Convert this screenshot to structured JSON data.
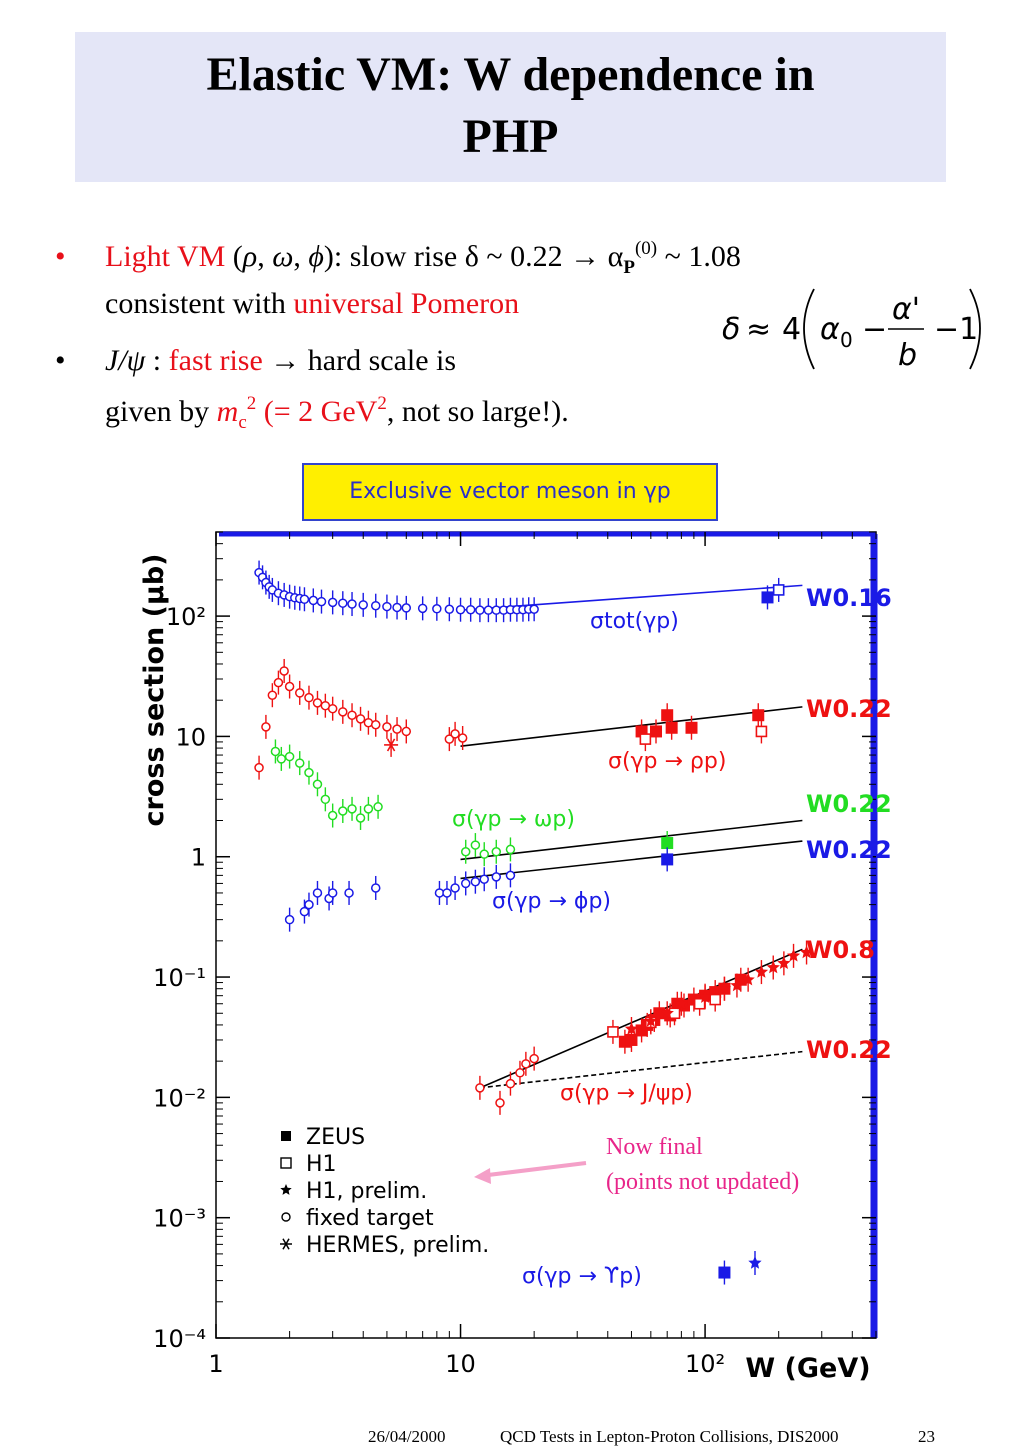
{
  "slide": {
    "title_line1": "Elastic VM: W dependence in",
    "title_line2": "PHP",
    "bullet1": {
      "part1_red": "Light VM",
      "part2": " (",
      "rho": "ρ",
      "sep1": ", ",
      "omega": "ω",
      "sep2": ", ",
      "phi": "ϕ",
      "part3": "): slow rise δ ~ 0.22 → α",
      "sub_p": "P",
      "sup0": "(0)",
      "part4": " ~ 1.08",
      "line2_text": "consistent with ",
      "line2_red": "universal Pomeron"
    },
    "bullet2": {
      "jpsi": "J/ψ",
      "colon": " : ",
      "red": "fast rise",
      "rest": " → hard scale is",
      "line2_a": "given by ",
      "m": "m",
      "c": "c",
      "sq": "2",
      "paren_red": " (= 2 GeV",
      "sq2": "2",
      "tail": ", not so large!)."
    },
    "formula": {
      "delta": "δ",
      "approx": "≈",
      "four": "4",
      "alpha0": "α",
      "zero": "0",
      "minus1": "−",
      "alphap": "α'",
      "b": "b",
      "minus2": "−1"
    },
    "chart_header": "Exclusive vector meson in γp",
    "note_line1": "Now final",
    "note_line2": "(points not updated)",
    "footer_date": "26/04/2000",
    "footer_title": "QCD Tests in Lepton-Proton Collisions, DIS2000",
    "footer_page": "23"
  },
  "chart_data": {
    "type": "scatter",
    "x_scale": "log",
    "y_scale": "log",
    "xlim": [
      1,
      500
    ],
    "ylim": [
      0.0001,
      500
    ],
    "xlabel": "W (GeV)",
    "ylabel": "cross section (μb)",
    "x_ticks": [
      "1",
      "10",
      "10²"
    ],
    "y_ticks": [
      "10⁻⁴",
      "10⁻³",
      "10⁻²",
      "10⁻¹",
      "1",
      "10",
      "10²"
    ],
    "colors": {
      "blue": "#1a1ae6",
      "red": "#ee1111",
      "green": "#22dd22",
      "black": "#000000"
    },
    "labels": {
      "tot": "σtot(γp)",
      "rho": "σ(γp → ρp)",
      "omega": "σ(γp → ωp)",
      "phi": "σ(γp → ϕp)",
      "jpsi": "σ(γp → J/ψp)",
      "upsilon": "σ(γp → ϒp)",
      "w_tot": "W0.16",
      "w_rho": "W0.22",
      "w_omega": "W0.22",
      "w_phi": "W0.22",
      "w_jpsi_hard": "W0.8",
      "w_jpsi_soft": "W0.22"
    },
    "legend": {
      "placement": "bottom-left",
      "entries": [
        "ZEUS",
        "H1",
        "H1, prelim.",
        "fixed target",
        "HERMES, prelim."
      ]
    },
    "fits": [
      {
        "name": "tot",
        "color": "blue",
        "x": [
          10,
          250
        ],
        "y": [
          112,
          180
        ],
        "dash": false
      },
      {
        "name": "rho",
        "color": "black",
        "x": [
          10,
          250
        ],
        "y": [
          8.3,
          17.6
        ],
        "dash": false
      },
      {
        "name": "omega",
        "color": "black",
        "x": [
          10,
          250
        ],
        "y": [
          0.95,
          2.0
        ],
        "dash": false
      },
      {
        "name": "phi",
        "color": "black",
        "x": [
          10,
          250
        ],
        "y": [
          0.66,
          1.35
        ],
        "dash": false
      },
      {
        "name": "jpsi_hard",
        "color": "black",
        "x": [
          12,
          250
        ],
        "y": [
          0.012,
          0.17
        ],
        "dash": false
      },
      {
        "name": "jpsi_soft",
        "color": "black",
        "x": [
          12,
          250
        ],
        "y": [
          0.012,
          0.024
        ],
        "dash": true
      }
    ],
    "series": [
      {
        "name": "tot_fixed",
        "color": "blue",
        "marker": "circle",
        "x": [
          1.5,
          1.55,
          1.6,
          1.65,
          1.7,
          1.8,
          1.9,
          2.0,
          2.1,
          2.2,
          2.3,
          2.5,
          2.7,
          3.0,
          3.3,
          3.6,
          4.0,
          4.5,
          5.0,
          5.5,
          6.0,
          7.0,
          8.0,
          9.0,
          10,
          11,
          12,
          13,
          14,
          15,
          16,
          17,
          18,
          19,
          20
        ],
        "y": [
          230,
          210,
          190,
          175,
          165,
          155,
          150,
          145,
          142,
          140,
          138,
          135,
          132,
          130,
          128,
          126,
          124,
          122,
          120,
          118,
          117,
          116,
          115,
          114,
          113,
          113,
          112,
          112,
          112,
          112,
          113,
          113,
          113,
          114,
          114
        ]
      },
      {
        "name": "tot_zeus",
        "color": "blue",
        "marker": "filled-square",
        "x": [
          180
        ],
        "y": [
          143
        ]
      },
      {
        "name": "tot_h1",
        "color": "blue",
        "marker": "open-square",
        "x": [
          200
        ],
        "y": [
          165
        ]
      },
      {
        "name": "rho_fixed",
        "color": "red",
        "marker": "circle",
        "x": [
          1.5,
          1.6,
          1.7,
          1.8,
          1.9,
          2.0,
          2.2,
          2.4,
          2.6,
          2.8,
          3.0,
          3.3,
          3.6,
          3.9,
          4.2,
          4.5,
          5.0,
          5.5,
          6.0,
          9.0,
          9.5,
          10.2
        ],
        "y": [
          5.5,
          12,
          22,
          28,
          35,
          26,
          23,
          21,
          19,
          18,
          17,
          16,
          15,
          14,
          13,
          12.5,
          12,
          11.5,
          11,
          9.5,
          10.5,
          9.7
        ]
      },
      {
        "name": "rho_hermes",
        "color": "red",
        "marker": "asterisk",
        "x": [
          5.2
        ],
        "y": [
          8.5
        ]
      },
      {
        "name": "rho_zeus",
        "color": "red",
        "marker": "filled-square",
        "x": [
          55,
          63,
          70,
          73,
          88,
          165
        ],
        "y": [
          11,
          11,
          15,
          11.8,
          11.8,
          15
        ]
      },
      {
        "name": "rho_h1",
        "color": "red",
        "marker": "open-square",
        "x": [
          57,
          170
        ],
        "y": [
          9.5,
          11
        ]
      },
      {
        "name": "omega_fixed",
        "color": "green",
        "marker": "circle",
        "x": [
          1.75,
          1.85,
          2.0,
          2.2,
          2.4,
          2.6,
          2.8,
          3.0,
          3.3,
          3.6,
          3.9,
          4.2,
          4.6,
          10.5,
          11.5,
          12.5,
          14,
          16
        ],
        "y": [
          7.5,
          6.5,
          6.8,
          6.0,
          5.0,
          4.0,
          3.0,
          2.2,
          2.4,
          2.5,
          2.1,
          2.5,
          2.6,
          1.1,
          1.25,
          1.05,
          1.1,
          1.15
        ]
      },
      {
        "name": "omega_zeus",
        "color": "green",
        "marker": "filled-square",
        "x": [
          70
        ],
        "y": [
          1.3
        ]
      },
      {
        "name": "phi_fixed",
        "color": "blue",
        "marker": "circle",
        "x": [
          2.0,
          2.3,
          2.4,
          2.6,
          2.9,
          3.0,
          3.5,
          4.5,
          8.2,
          8.8,
          9.5,
          10.5,
          11.5,
          12.5,
          14,
          16
        ],
        "y": [
          0.3,
          0.35,
          0.4,
          0.5,
          0.45,
          0.5,
          0.5,
          0.55,
          0.5,
          0.5,
          0.55,
          0.6,
          0.62,
          0.65,
          0.68,
          0.7
        ]
      },
      {
        "name": "phi_zeus",
        "color": "blue",
        "marker": "filled-square",
        "x": [
          70
        ],
        "y": [
          0.95
        ]
      },
      {
        "name": "jpsi_fixed",
        "color": "red",
        "marker": "circle",
        "x": [
          12,
          14.5,
          16,
          17.5,
          18.5,
          20
        ],
        "y": [
          0.012,
          0.009,
          0.013,
          0.016,
          0.019,
          0.021
        ]
      },
      {
        "name": "jpsi_zeus",
        "color": "red",
        "marker": "filled-square",
        "x": [
          47,
          50,
          55,
          58,
          62,
          65,
          72,
          77,
          82,
          90,
          100,
          110,
          120,
          140
        ],
        "y": [
          0.029,
          0.03,
          0.036,
          0.04,
          0.044,
          0.05,
          0.048,
          0.06,
          0.058,
          0.065,
          0.07,
          0.075,
          0.08,
          0.095
        ]
      },
      {
        "name": "jpsi_h1",
        "color": "red",
        "marker": "open-square",
        "x": [
          42,
          60,
          75,
          95,
          110
        ],
        "y": [
          0.035,
          0.042,
          0.05,
          0.06,
          0.065
        ]
      },
      {
        "name": "jpsi_h1_prelim",
        "color": "red",
        "marker": "star",
        "x": [
          50,
          60,
          70,
          80,
          100,
          120,
          135,
          150,
          170,
          190,
          210,
          230,
          260
        ],
        "y": [
          0.037,
          0.043,
          0.05,
          0.06,
          0.068,
          0.08,
          0.085,
          0.095,
          0.11,
          0.12,
          0.13,
          0.15,
          0.16
        ]
      },
      {
        "name": "upsilon_zeus",
        "color": "blue",
        "marker": "filled-square",
        "x": [
          120
        ],
        "y": [
          0.00035
        ]
      },
      {
        "name": "upsilon_h1_prelim",
        "color": "blue",
        "marker": "star",
        "x": [
          160
        ],
        "y": [
          0.00042
        ]
      }
    ]
  }
}
